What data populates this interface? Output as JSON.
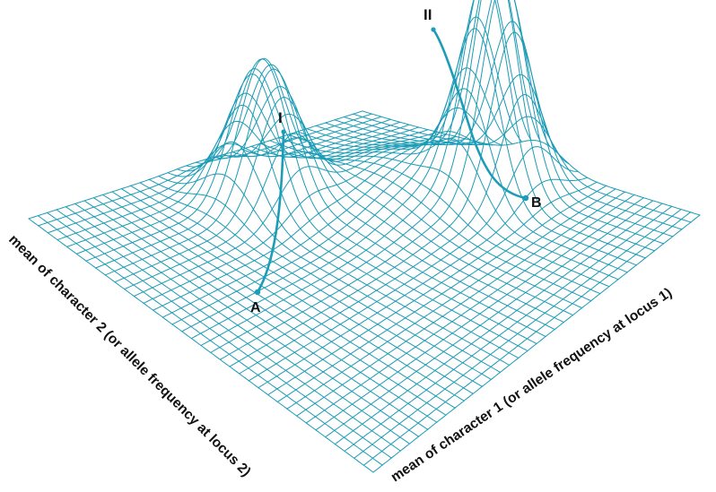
{
  "colors": {
    "mesh": "#1b9bb5",
    "path": "#1c9cb7",
    "text": "#111111"
  },
  "peaks": {
    "low": "I",
    "high": "II"
  },
  "points": {
    "start": "A",
    "end": "B"
  },
  "axes": {
    "left": "mean of character 2 (or allele frequency at locus 2)",
    "right": "mean of character 1 (or allele frequency at locus 1)"
  }
}
